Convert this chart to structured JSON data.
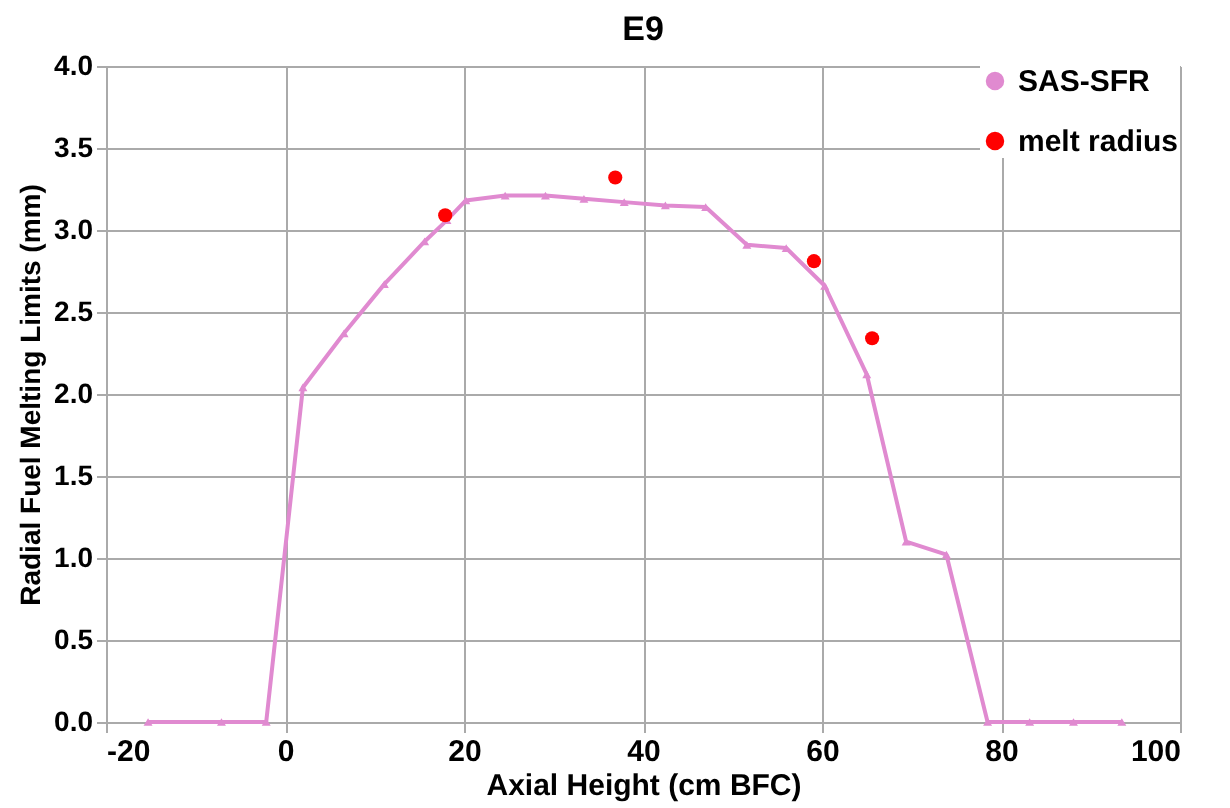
{
  "chart_data": {
    "type": "line",
    "title": "E9",
    "xlabel": "Axial Height (cm BFC)",
    "ylabel": "Radial Fuel Melting Limits (mm)",
    "xlim": [
      -20,
      100
    ],
    "xticks": [
      -20,
      0,
      20,
      40,
      60,
      80,
      100
    ],
    "ylim": [
      0,
      4
    ],
    "yticks": [
      {
        "value": 0,
        "label": "0.0"
      },
      {
        "value": 0.5,
        "label": "0.5"
      },
      {
        "value": 1,
        "label": "1.0"
      },
      {
        "value": 1.5,
        "label": "1.5"
      },
      {
        "value": 2,
        "label": "2.0"
      },
      {
        "value": 2.5,
        "label": "2.5"
      },
      {
        "value": 3,
        "label": "3.0"
      },
      {
        "value": 3.5,
        "label": "3.5"
      },
      {
        "value": 4,
        "label": "4.0"
      }
    ],
    "grid": true,
    "legend": "top right",
    "series": [
      {
        "name": "SAS-SFR",
        "color": "#e08ad0",
        "marker": "triangle",
        "x": [
          -15.3,
          -7.1,
          -2.1,
          2.0,
          6.6,
          11.1,
          15.6,
          18.1,
          20.2,
          24.6,
          29.1,
          33.4,
          37.9,
          42.5,
          47.0,
          51.6,
          56.0,
          60.3,
          65.0,
          69.4,
          73.9,
          78.5,
          83.2,
          88.1,
          93.5
        ],
        "values": [
          0,
          0,
          0,
          2.04,
          2.37,
          2.67,
          2.93,
          3.06,
          3.18,
          3.21,
          3.21,
          3.19,
          3.17,
          3.15,
          3.14,
          2.91,
          2.89,
          2.66,
          2.12,
          1.1,
          1.02,
          0,
          0,
          0,
          0
        ]
      },
      {
        "name": "melt radius",
        "type": "scatter",
        "color": "#ff0000",
        "marker": "circle",
        "x": [
          17.9,
          36.9,
          59.1,
          65.6
        ],
        "values": [
          3.09,
          3.32,
          2.81,
          2.34
        ]
      }
    ]
  }
}
